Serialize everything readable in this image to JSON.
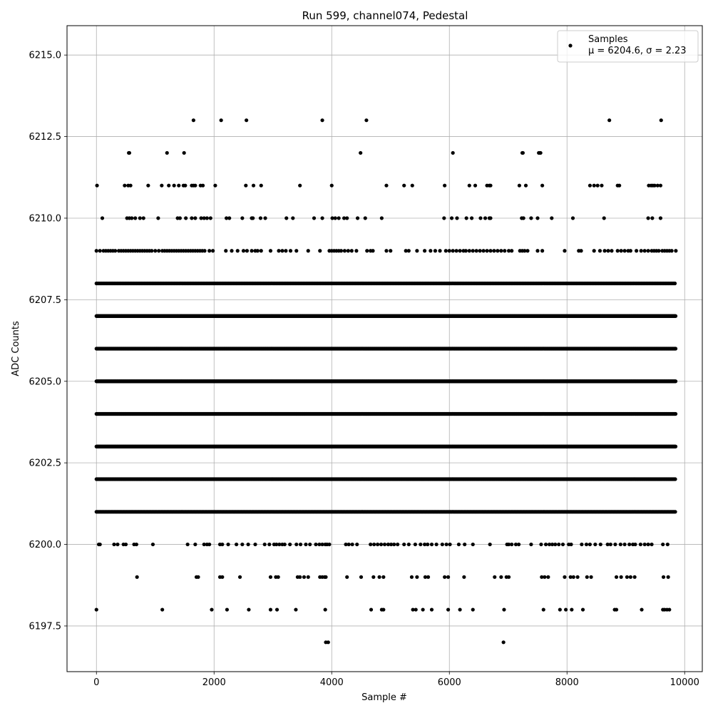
{
  "chart_data": {
    "type": "scatter",
    "title": "Run 599, channel074, Pedestal",
    "xlabel": "Sample #",
    "ylabel": "ADC Counts",
    "xlim": [
      -500,
      10300
    ],
    "ylim": [
      6196.1,
      6215.9
    ],
    "xticks": [
      0,
      2000,
      4000,
      6000,
      8000,
      10000
    ],
    "xtick_labels": [
      "0",
      "2000",
      "4000",
      "6000",
      "8000",
      "10000"
    ],
    "yticks": [
      6197.5,
      6200.0,
      6202.5,
      6205.0,
      6207.5,
      6210.0,
      6212.5,
      6215.0
    ],
    "ytick_labels": [
      "6197.5",
      "6200.0",
      "6202.5",
      "6205.0",
      "6207.5",
      "6210.0",
      "6212.5",
      "6215.0"
    ],
    "grid": true,
    "legend_position": "top-right",
    "marker_color": "#000000",
    "series": [
      {
        "name": "Samples",
        "label_line2": "μ = 6204.6, σ = 2.23",
        "levels": [
          {
            "y": 6213,
            "x": [
              1650,
              2120,
              2550,
              3840,
              4590,
              8720,
              9600
            ]
          },
          {
            "y": 6212,
            "x": [
              550,
              560,
              1200,
              1490,
              4490,
              6060,
              7240,
              7250,
              7520,
              7540,
              7550
            ]
          },
          {
            "y": 6211,
            "x": [
              10,
              480,
              540,
              580,
              880,
              1110,
              1230,
              1320,
              1400,
              1480,
              1510,
              1620,
              1650,
              1680,
              1770,
              1810,
              2020,
              2540,
              2670,
              2800,
              3460,
              4000,
              4930,
              5230,
              5370,
              5920,
              6340,
              6440,
              6640,
              6680,
              6700,
              7190,
              7300,
              7580,
              8390,
              8460,
              8520,
              8590,
              8860,
              8890,
              9390,
              9430,
              9460,
              9490,
              9540,
              9590
            ]
          },
          {
            "y": 6210,
            "x": [
              100,
              520,
              560,
              600,
              660,
              740,
              800,
              1050,
              1380,
              1420,
              1520,
              1620,
              1680,
              1780,
              1830,
              1880,
              1940,
              2210,
              2260,
              2480,
              2640,
              2660,
              2790,
              2870,
              3230,
              3340,
              3700,
              3840,
              4010,
              4060,
              4120,
              4210,
              4260,
              4440,
              4570,
              4850,
              5910,
              6040,
              6130,
              6290,
              6380,
              6530,
              6610,
              6680,
              6700,
              7230,
              7260,
              7390,
              7500,
              7740,
              8100,
              8630,
              9380,
              9450,
              9590
            ]
          },
          {
            "y": 6209,
            "x": [
              0,
              60,
              120,
              160,
              200,
              240,
              280,
              320,
              380,
              420,
              460,
              500,
              540,
              580,
              620,
              660,
              700,
              740,
              780,
              820,
              860,
              900,
              940,
              1000,
              1060,
              1120,
              1160,
              1200,
              1240,
              1280,
              1320,
              1360,
              1400,
              1440,
              1480,
              1520,
              1560,
              1600,
              1640,
              1680,
              1720,
              1760,
              1800,
              1840,
              1920,
              1980,
              2200,
              2300,
              2400,
              2500,
              2560,
              2640,
              2700,
              2740,
              2800,
              2960,
              3100,
              3160,
              3220,
              3300,
              3400,
              3600,
              3800,
              3960,
              4000,
              4040,
              4080,
              4120,
              4160,
              4220,
              4280,
              4340,
              4420,
              4600,
              4660,
              4700,
              4930,
              5000,
              5260,
              5310,
              5450,
              5580,
              5680,
              5760,
              5840,
              5940,
              6000,
              6060,
              6120,
              6180,
              6240,
              6280,
              6340,
              6400,
              6460,
              6520,
              6580,
              6640,
              6700,
              6760,
              6820,
              6880,
              6940,
              7010,
              7060,
              7200,
              7240,
              7280,
              7330,
              7500,
              7580,
              7960,
              8200,
              8240,
              8460,
              8560,
              8640,
              8700,
              8760,
              8860,
              8920,
              8980,
              9040,
              9080,
              9180,
              9260,
              9320,
              9380,
              9440,
              9480,
              9520,
              9560,
              9620,
              9660,
              9700,
              9740,
              9780,
              9850
            ]
          },
          {
            "y": 6208
          },
          {
            "y": 6207
          },
          {
            "y": 6206
          },
          {
            "y": 6205
          },
          {
            "y": 6204
          },
          {
            "y": 6203
          },
          {
            "y": 6202
          },
          {
            "y": 6201
          },
          {
            "y": 6200,
            "x": [
              40,
              60,
              300,
              360,
              460,
              500,
              640,
              680,
              960,
              1550,
              1680,
              1830,
              1880,
              1920,
              2100,
              2140,
              2240,
              2380,
              2480,
              2580,
              2700,
              2860,
              2940,
              3020,
              3060,
              3110,
              3160,
              3200,
              3290,
              3400,
              3470,
              3560,
              3630,
              3730,
              3790,
              3840,
              3890,
              3920,
              3960,
              4240,
              4290,
              4350,
              4430,
              4660,
              4720,
              4780,
              4840,
              4900,
              4960,
              5010,
              5060,
              5120,
              5230,
              5310,
              5420,
              5510,
              5580,
              5630,
              5700,
              5780,
              5880,
              5950,
              6010,
              6160,
              6260,
              6400,
              6690,
              6980,
              7010,
              7060,
              7130,
              7180,
              7390,
              7560,
              7640,
              7700,
              7750,
              7800,
              7860,
              7930,
              8030,
              8070,
              8250,
              8330,
              8390,
              8480,
              8570,
              8690,
              8740,
              8820,
              8910,
              8980,
              9060,
              9120,
              9160,
              9250,
              9320,
              9380,
              9440,
              9630,
              9710
            ]
          },
          {
            "y": 6199,
            "x": [
              690,
              1700,
              1730,
              2100,
              2140,
              2440,
              2960,
              3050,
              3090,
              3420,
              3460,
              3530,
              3600,
              3800,
              3840,
              3880,
              3900,
              4260,
              4500,
              4710,
              4810,
              4880,
              5360,
              5450,
              5590,
              5640,
              5920,
              5980,
              6250,
              6770,
              6880,
              6970,
              7010,
              7570,
              7620,
              7680,
              7960,
              8060,
              8110,
              8180,
              8340,
              8410,
              8840,
              8920,
              9020,
              9080,
              9150,
              9640,
              9720
            ]
          },
          {
            "y": 6198,
            "x": [
              0,
              1120,
              1960,
              2220,
              2590,
              2960,
              3070,
              3390,
              3890,
              4670,
              4850,
              4880,
              5380,
              5430,
              5550,
              5700,
              5980,
              6180,
              6400,
              6930,
              7600,
              7880,
              7980,
              8080,
              8270,
              8810,
              8840,
              9270,
              9630,
              9660,
              9700,
              9740
            ]
          },
          {
            "y": 6197,
            "x": [
              3900,
              3940,
              6920
            ]
          }
        ]
      }
    ]
  }
}
